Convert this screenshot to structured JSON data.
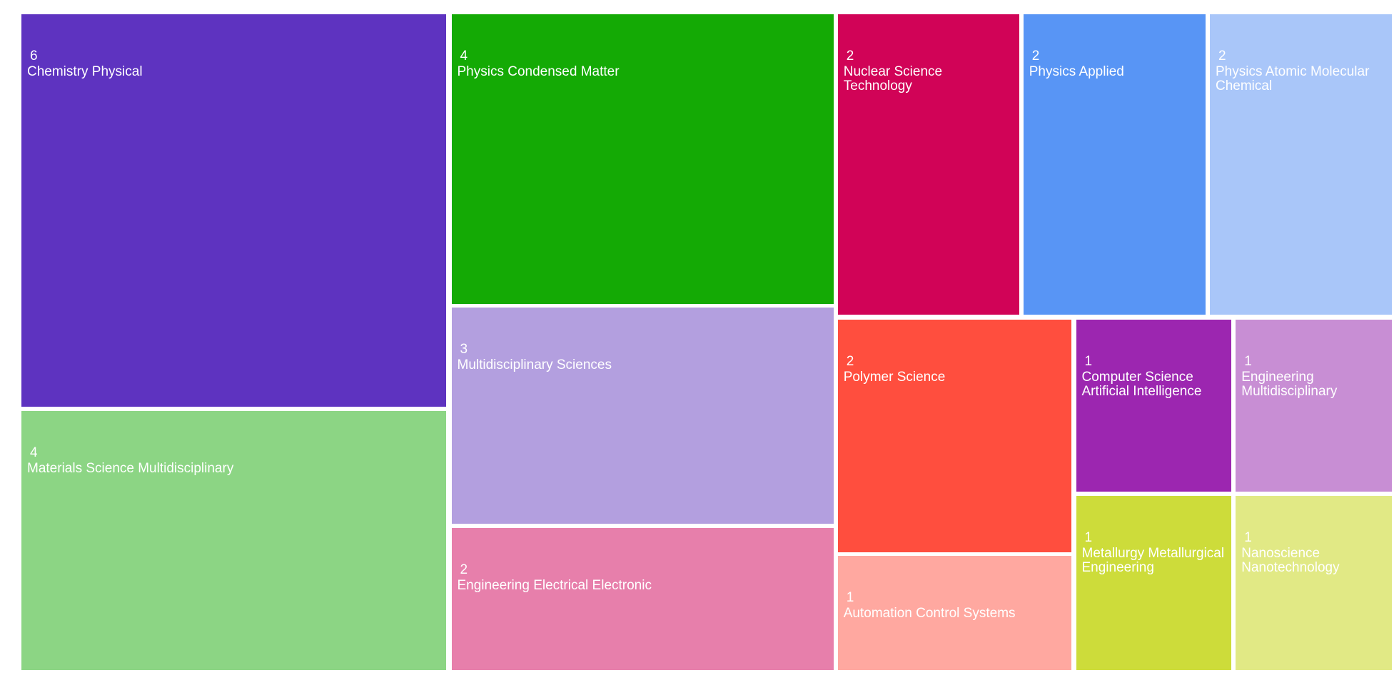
{
  "chart_data": {
    "type": "treemap",
    "categories": [
      "Chemistry Physical",
      "Materials Science Multidisciplinary",
      "Physics Condensed Matter",
      "Multidisciplinary Sciences",
      "Engineering Electrical Electronic",
      "Nuclear Science Technology",
      "Physics Applied",
      "Physics Atomic Molecular Chemical",
      "Polymer Science",
      "Automation Control Systems",
      "Computer Science Artificial Intelligence",
      "Engineering Multidisciplinary",
      "Metallurgy Metallurgical Engineering",
      "Nanoscience Nanotechnology"
    ],
    "values": [
      6,
      4,
      4,
      3,
      2,
      2,
      2,
      2,
      2,
      1,
      1,
      1,
      1,
      1
    ],
    "colors": [
      "#5e33c0",
      "#8cd584",
      "#14aa05",
      "#b39fdf",
      "#e77fab",
      "#d10357",
      "#5895f5",
      "#a9c6f9",
      "#ff4e3e",
      "#ffa8a0",
      "#9c26b0",
      "#c88ed4",
      "#cddc3a",
      "#e1e985"
    ]
  }
}
